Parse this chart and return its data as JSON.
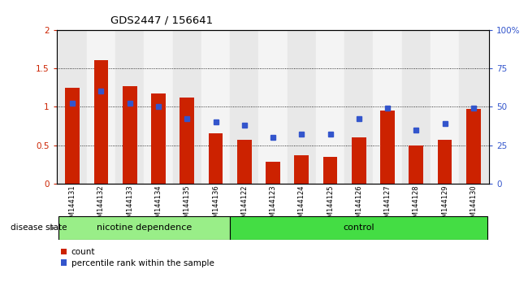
{
  "title": "GDS2447 / 156641",
  "samples": [
    "GSM144131",
    "GSM144132",
    "GSM144133",
    "GSM144134",
    "GSM144135",
    "GSM144136",
    "GSM144122",
    "GSM144123",
    "GSM144124",
    "GSM144125",
    "GSM144126",
    "GSM144127",
    "GSM144128",
    "GSM144129",
    "GSM144130"
  ],
  "count_values": [
    1.25,
    1.6,
    1.27,
    1.17,
    1.12,
    0.65,
    0.57,
    0.28,
    0.37,
    0.35,
    0.6,
    0.95,
    0.5,
    0.57,
    0.97
  ],
  "percentile_values": [
    52,
    60,
    52,
    50,
    42,
    40,
    38,
    30,
    32,
    32,
    42,
    49,
    35,
    39,
    49
  ],
  "bar_color": "#cc2200",
  "dot_color": "#3355cc",
  "ylim_left": [
    0,
    2
  ],
  "ylim_right": [
    0,
    100
  ],
  "yticks_left": [
    0,
    0.5,
    1.0,
    1.5,
    2.0
  ],
  "yticks_right": [
    0,
    25,
    50,
    75,
    100
  ],
  "ytick_labels_left": [
    "0",
    "0.5",
    "1",
    "1.5",
    "2"
  ],
  "ytick_labels_right": [
    "0",
    "25",
    "50",
    "75",
    "100%"
  ],
  "group1_label": "nicotine dependence",
  "group2_label": "control",
  "group1_count": 6,
  "group2_count": 9,
  "disease_state_label": "disease state",
  "legend_count_label": "count",
  "legend_percentile_label": "percentile rank within the sample",
  "group1_color": "#99ee88",
  "group2_color": "#44dd44",
  "bar_width": 0.5
}
